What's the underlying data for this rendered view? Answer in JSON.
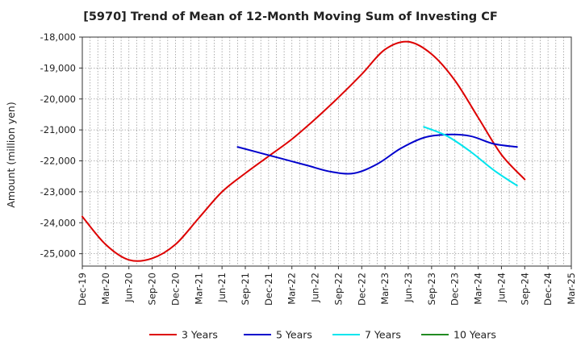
{
  "chart_data": {
    "type": "line",
    "title": "[5970]  Trend of Mean of 12-Month Moving Sum of Investing CF",
    "xlabel": "",
    "ylabel": "Amount (million yen)",
    "ylim": [
      -25400,
      -18000
    ],
    "yticks": [
      -18000,
      -19000,
      -20000,
      -21000,
      -22000,
      -23000,
      -24000,
      -25000
    ],
    "ytick_labels": [
      "-18,000",
      "-19,000",
      "-20,000",
      "-21,000",
      "-22,000",
      "-23,000",
      "-24,000",
      "-25,000"
    ],
    "x_categories": [
      "Dec-19",
      "Mar-20",
      "Jun-20",
      "Sep-20",
      "Dec-20",
      "Mar-21",
      "Jun-21",
      "Sep-21",
      "Dec-21",
      "Mar-22",
      "Jun-22",
      "Sep-22",
      "Dec-22",
      "Mar-23",
      "Jun-23",
      "Sep-23",
      "Dec-23",
      "Mar-24",
      "Jun-24",
      "Sep-24",
      "Dec-24",
      "Mar-25"
    ],
    "grid": true,
    "legend_position": "bottom",
    "series": [
      {
        "name": "3 Years",
        "color": "#dd0000",
        "points": [
          [
            0,
            -23800
          ],
          [
            1,
            -24700
          ],
          [
            2,
            -25200
          ],
          [
            3,
            -25150
          ],
          [
            4,
            -24700
          ],
          [
            5,
            -23850
          ],
          [
            6,
            -23000
          ],
          [
            7,
            -22400
          ],
          [
            8,
            -21850
          ],
          [
            9,
            -21300
          ],
          [
            10,
            -20650
          ],
          [
            11,
            -19950
          ],
          [
            12,
            -19200
          ],
          [
            13,
            -18400
          ],
          [
            14,
            -18150
          ],
          [
            15,
            -18550
          ],
          [
            16,
            -19400
          ],
          [
            17,
            -20600
          ],
          [
            18,
            -21800
          ],
          [
            19,
            -22600
          ]
        ]
      },
      {
        "name": "5 Years",
        "color": "#0000cc",
        "points": [
          [
            6.67,
            -21550
          ],
          [
            7.67,
            -21750
          ],
          [
            8.67,
            -21950
          ],
          [
            9.67,
            -22150
          ],
          [
            10.67,
            -22350
          ],
          [
            11.67,
            -22400
          ],
          [
            12.67,
            -22100
          ],
          [
            13.67,
            -21600
          ],
          [
            14.67,
            -21250
          ],
          [
            15.67,
            -21150
          ],
          [
            16.67,
            -21200
          ],
          [
            17.67,
            -21450
          ],
          [
            18.67,
            -21550
          ]
        ]
      },
      {
        "name": "7 Years",
        "color": "#00e5ee",
        "points": [
          [
            14.67,
            -20900
          ],
          [
            15.67,
            -21200
          ],
          [
            16.67,
            -21700
          ],
          [
            17.67,
            -22300
          ],
          [
            18.67,
            -22800
          ]
        ]
      },
      {
        "name": "10 Years",
        "color": "#228b22",
        "points": []
      }
    ]
  }
}
